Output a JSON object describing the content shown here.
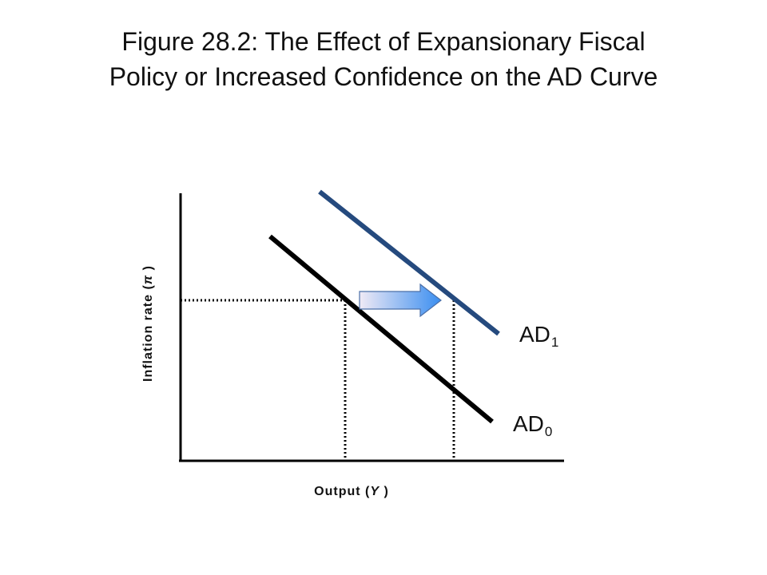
{
  "title": {
    "line1": "Figure 28.2: The Effect of Expansionary Fiscal",
    "line2": "Policy or Increased Confidence on the AD Curve"
  },
  "axes": {
    "x_label_main": "Output (",
    "x_label_var": "Y",
    "x_label_end": " )",
    "y_label_main": "Inflation rate (",
    "y_label_var": "π",
    "y_label_end": " )"
  },
  "curves": {
    "ad0": {
      "label": "AD",
      "subscript": "0",
      "color": "#000000"
    },
    "ad1": {
      "label": "AD",
      "subscript": "1",
      "color": "#254a7e"
    }
  },
  "colors": {
    "axis": "#000000",
    "guides": "#000000",
    "arrow_start": "#f0eaf5",
    "arrow_end": "#3a8ef0",
    "arrow_stroke": "#4a6fa8"
  }
}
